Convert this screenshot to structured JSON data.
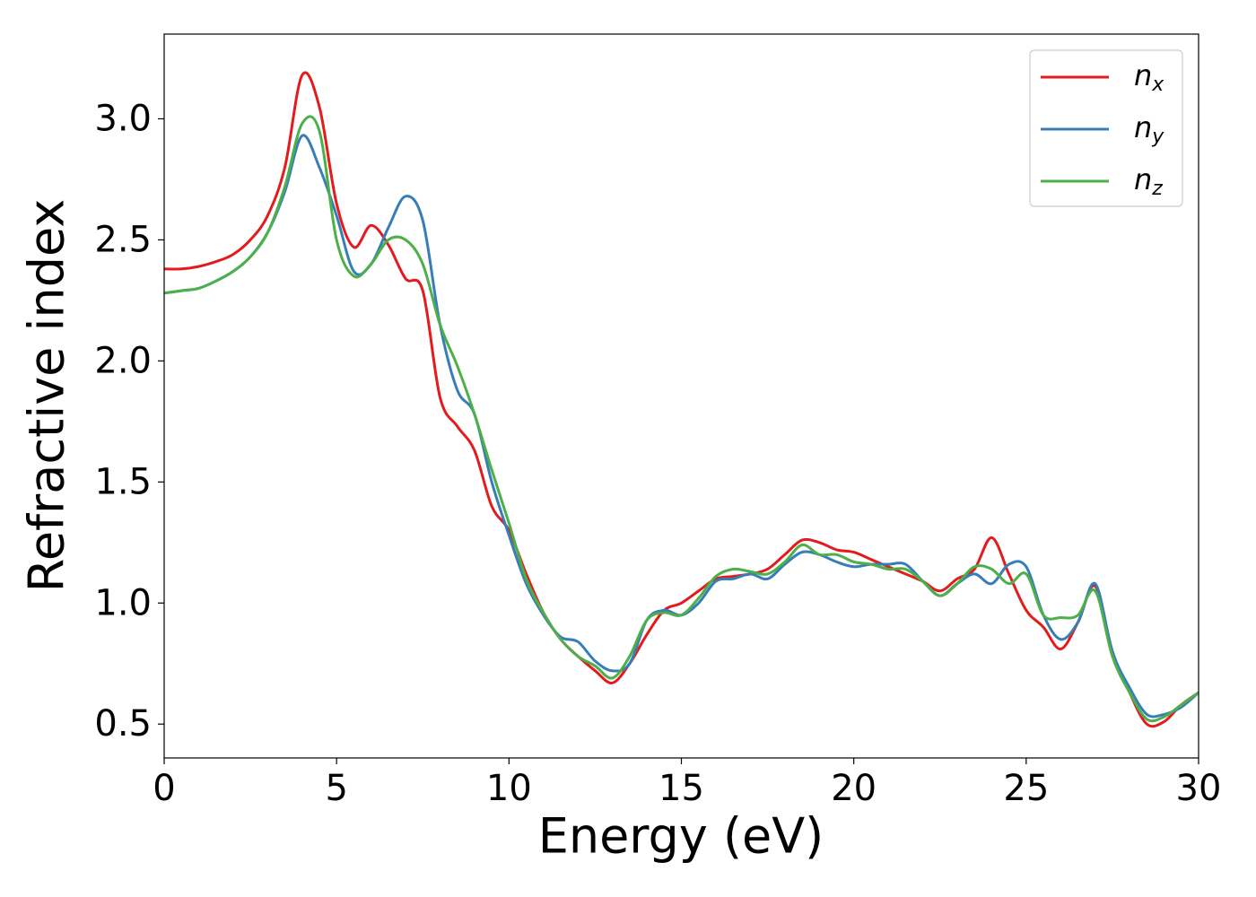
{
  "chart_data": {
    "type": "line",
    "x_label": "Energy (eV)",
    "y_label": "Refractive index",
    "x": [
      0,
      0.5,
      1,
      1.5,
      2,
      2.5,
      3,
      3.5,
      4,
      4.5,
      5,
      5.5,
      6,
      6.5,
      7,
      7.5,
      8,
      8.5,
      9,
      9.5,
      10,
      10.5,
      11,
      11.5,
      12,
      12.5,
      13,
      13.5,
      14,
      14.5,
      15,
      15.5,
      16,
      16.5,
      17,
      17.5,
      18,
      18.5,
      19,
      19.5,
      20,
      20.5,
      21,
      21.5,
      22,
      22.5,
      23,
      23.5,
      24,
      24.5,
      25,
      25.5,
      26,
      26.5,
      27,
      27.5,
      28,
      28.5,
      29,
      29.5,
      30
    ],
    "series": [
      {
        "name": "nx",
        "color": "#e41a1c",
        "values": [
          2.38,
          2.38,
          2.39,
          2.41,
          2.44,
          2.5,
          2.6,
          2.8,
          3.18,
          3.05,
          2.65,
          2.47,
          2.56,
          2.48,
          2.34,
          2.29,
          1.85,
          1.73,
          1.63,
          1.4,
          1.3,
          1.12,
          0.96,
          0.85,
          0.78,
          0.72,
          0.67,
          0.75,
          0.87,
          0.97,
          1.0,
          1.05,
          1.1,
          1.11,
          1.12,
          1.14,
          1.2,
          1.26,
          1.25,
          1.22,
          1.21,
          1.18,
          1.15,
          1.12,
          1.09,
          1.05,
          1.1,
          1.14,
          1.27,
          1.12,
          0.97,
          0.9,
          0.81,
          0.92,
          1.07,
          0.8,
          0.63,
          0.5,
          0.51,
          0.58,
          0.63
        ]
      },
      {
        "name": "ny",
        "color": "#377eb8",
        "values": [
          2.28,
          2.29,
          2.3,
          2.33,
          2.37,
          2.43,
          2.53,
          2.7,
          2.93,
          2.8,
          2.6,
          2.37,
          2.4,
          2.55,
          2.68,
          2.58,
          2.15,
          1.88,
          1.78,
          1.5,
          1.28,
          1.08,
          0.95,
          0.86,
          0.84,
          0.76,
          0.72,
          0.75,
          0.93,
          0.97,
          0.95,
          1.0,
          1.09,
          1.1,
          1.12,
          1.1,
          1.16,
          1.21,
          1.2,
          1.17,
          1.15,
          1.16,
          1.16,
          1.16,
          1.09,
          1.03,
          1.08,
          1.12,
          1.08,
          1.16,
          1.15,
          0.95,
          0.85,
          0.92,
          1.08,
          0.8,
          0.65,
          0.54,
          0.54,
          0.57,
          0.63
        ]
      },
      {
        "name": "nz",
        "color": "#4daf4a",
        "values": [
          2.28,
          2.29,
          2.3,
          2.33,
          2.37,
          2.43,
          2.53,
          2.72,
          2.98,
          2.95,
          2.5,
          2.35,
          2.4,
          2.5,
          2.5,
          2.4,
          2.15,
          1.98,
          1.78,
          1.55,
          1.33,
          1.1,
          0.96,
          0.85,
          0.78,
          0.74,
          0.69,
          0.78,
          0.93,
          0.96,
          0.95,
          1.02,
          1.11,
          1.14,
          1.13,
          1.12,
          1.17,
          1.24,
          1.2,
          1.2,
          1.17,
          1.16,
          1.14,
          1.14,
          1.09,
          1.03,
          1.08,
          1.15,
          1.14,
          1.08,
          1.12,
          0.95,
          0.94,
          0.95,
          1.05,
          0.78,
          0.63,
          0.52,
          0.53,
          0.58,
          0.63
        ]
      }
    ],
    "xlim": [
      0,
      30
    ],
    "xticks": [
      0,
      5,
      10,
      15,
      20,
      25,
      30
    ],
    "ylim": [
      0.36,
      3.35
    ],
    "yticks": [
      0.5,
      {
        "value": 1,
        "label": "1.0"
      },
      1.5,
      {
        "value": 2,
        "label": "2.0"
      },
      2.5,
      {
        "value": 3,
        "label": "3.0"
      }
    ],
    "legend": "upper right",
    "grid": false
  }
}
